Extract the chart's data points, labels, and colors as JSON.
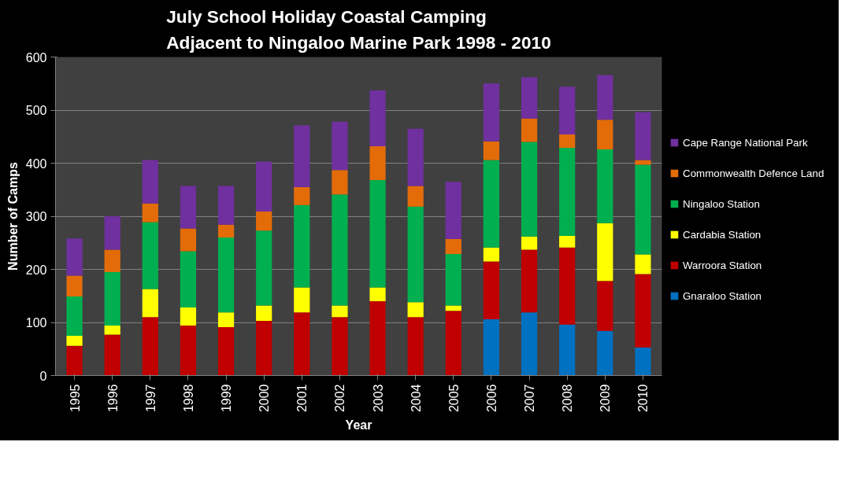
{
  "chart_data": {
    "type": "bar",
    "stacked": true,
    "title": "July School Holiday Coastal Camping\nAdjacent to Ningaloo Marine Park 1998 - 2010",
    "xlabel": "Year",
    "ylabel": "Number of Camps",
    "categories": [
      "1995",
      "1996",
      "1997",
      "1998",
      "1999",
      "2000",
      "2001",
      "2002",
      "2003",
      "2004",
      "2005",
      "2006",
      "2007",
      "2008",
      "2009",
      "2010"
    ],
    "series": [
      {
        "name": "Gnaraloo Station",
        "color": "#0070c0",
        "values": [
          null,
          null,
          null,
          null,
          null,
          null,
          null,
          null,
          null,
          null,
          null,
          106,
          119,
          96,
          84,
          53
        ]
      },
      {
        "name": "Warroora Station",
        "color": "#c00000",
        "values": [
          56,
          77,
          110,
          94,
          91,
          103,
          119,
          110,
          140,
          110,
          122,
          109,
          118,
          145,
          94,
          138
        ]
      },
      {
        "name": "Cardabia Station",
        "color": "#ffff00",
        "values": [
          19,
          17,
          53,
          34,
          28,
          29,
          47,
          22,
          26,
          28,
          10,
          26,
          25,
          22,
          109,
          37
        ]
      },
      {
        "name": "Ningaloo Station",
        "color": "#00b050",
        "values": [
          74,
          101,
          126,
          106,
          141,
          141,
          155,
          209,
          202,
          180,
          97,
          165,
          178,
          166,
          139,
          169
        ]
      },
      {
        "name": "Commonwealth Defence Land",
        "color": "#e36c09",
        "values": [
          39,
          42,
          35,
          43,
          24,
          36,
          34,
          46,
          64,
          39,
          28,
          35,
          44,
          25,
          56,
          9
        ]
      },
      {
        "name": "Cape Range National Park",
        "color": "#7030a0",
        "values": [
          70,
          63,
          82,
          80,
          73,
          94,
          116,
          91,
          105,
          108,
          108,
          109,
          78,
          90,
          84,
          90
        ]
      }
    ],
    "ylim": [
      0,
      600
    ],
    "yticks": [
      0,
      100,
      200,
      300,
      400,
      500,
      600
    ],
    "grid": "y",
    "legend": "right"
  }
}
